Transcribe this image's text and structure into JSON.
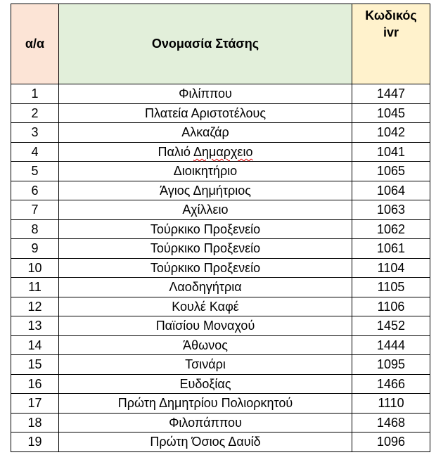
{
  "header": {
    "col1": "α/α",
    "col2": "Ονομασία Στάσης",
    "col3_line1": "Κωδικός",
    "col3_line2": "ivr"
  },
  "colors": {
    "col1_header": "#fce4d6",
    "col2_header": "#e2efda",
    "col3_header": "#fff2cc"
  },
  "rows": [
    {
      "n": "1",
      "name": "Φιλίππου",
      "code": "1447"
    },
    {
      "n": "2",
      "name": "Πλατεία Αριστοτέλους",
      "code": "1045"
    },
    {
      "n": "3",
      "name": "Αλκαζάρ",
      "code": "1042"
    },
    {
      "n": "4",
      "name_a": "Παλιό ",
      "name_b": "Δημαρχειο",
      "code": "1041"
    },
    {
      "n": "5",
      "name": "Διοικητήριο",
      "code": "1065"
    },
    {
      "n": "6",
      "name": "Άγιος Δημήτριος",
      "code": "1064"
    },
    {
      "n": "7",
      "name": "Αχίλλειο",
      "code": "1063"
    },
    {
      "n": "8",
      "name": "Τούρκικο Προξενείο",
      "code": "1062"
    },
    {
      "n": "9",
      "name": "Τούρκικο Προξενείο",
      "code": "1061"
    },
    {
      "n": "10",
      "name": "Τούρκικο Προξενείο",
      "code": "1104"
    },
    {
      "n": "11",
      "name": "Λαοδηγήτρια",
      "code": "1105"
    },
    {
      "n": "12",
      "name": "Κουλέ Καφέ",
      "code": "1106"
    },
    {
      "n": "13",
      "name": "Παϊσίου Μοναχού",
      "code": "1452"
    },
    {
      "n": "14",
      "name": "Άθωνος",
      "code": "1444"
    },
    {
      "n": "15",
      "name": "Τσινάρι",
      "code": "1095"
    },
    {
      "n": "16",
      "name": "Ευδοξίας",
      "code": "1466"
    },
    {
      "n": "17",
      "name": "Πρώτη Δημητρίου Πολιορκητού",
      "code": "1110"
    },
    {
      "n": "18",
      "name": "Φιλοπάππου",
      "code": "1468"
    },
    {
      "n": "19",
      "name": "Πρώτη Όσιος Δαυίδ",
      "code": "1096"
    }
  ]
}
